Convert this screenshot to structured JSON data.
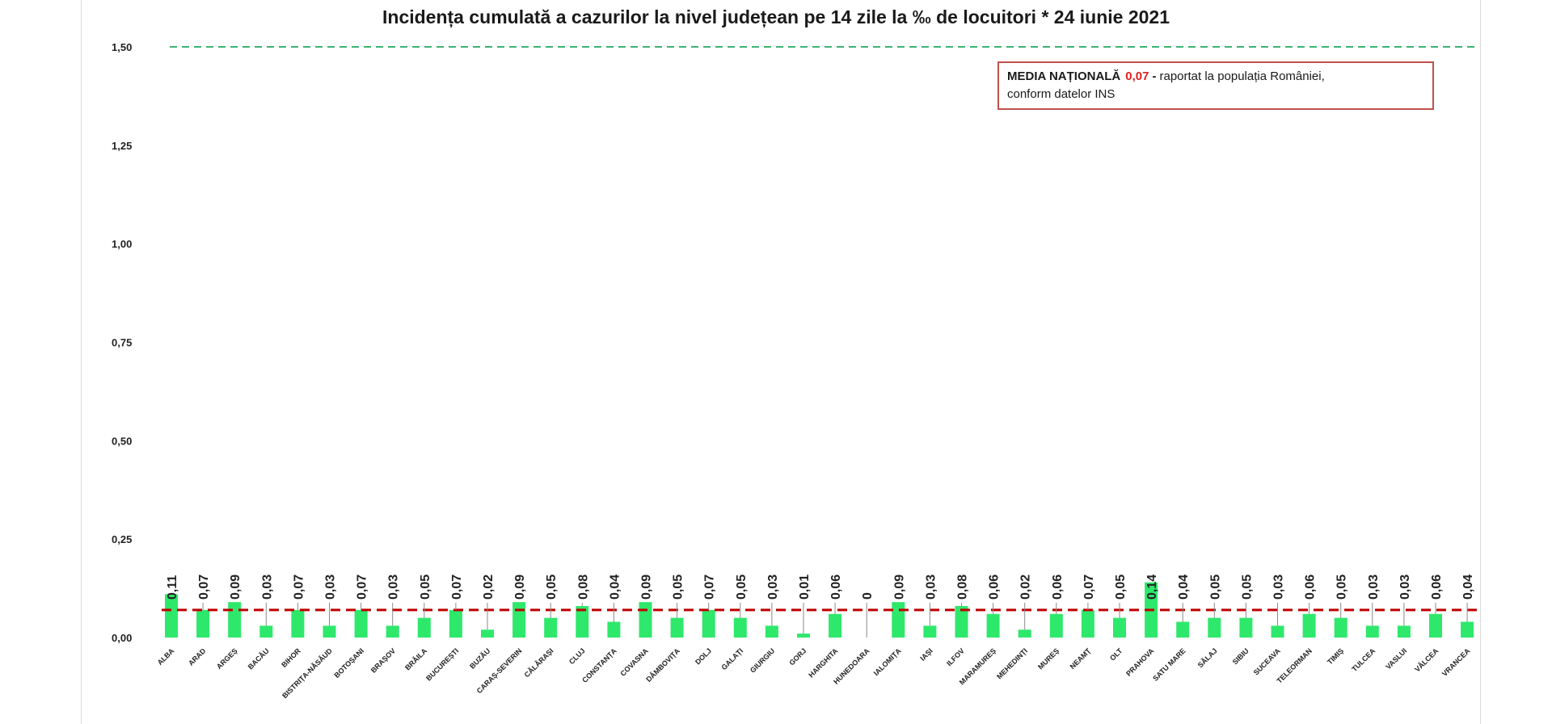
{
  "chart_data": {
    "type": "bar",
    "title": "Incidența cumulată a cazurilor la nivel județean pe 14 zile la ‰ de locuitori *  24 iunie 2021",
    "categories": [
      "ALBA",
      "ARAD",
      "ARGEȘ",
      "BACĂU",
      "BIHOR",
      "BISTRIȚA-NĂSĂUD",
      "BOTOȘANI",
      "BRAȘOV",
      "BRĂILA",
      "BUCUREȘTI",
      "BUZĂU",
      "CARAȘ-SEVERIN",
      "CĂLĂRAȘI",
      "CLUJ",
      "CONSTANȚA",
      "COVASNA",
      "DÂMBOVIȚA",
      "DOLJ",
      "GALAȚI",
      "GIURGIU",
      "GORJ",
      "HARGHITA",
      "HUNEDOARA",
      "IALOMIȚA",
      "IAȘI",
      "ILFOV",
      "MARAMUREȘ",
      "MEHEDINȚI",
      "MUREȘ",
      "NEAMȚ",
      "OLT",
      "PRAHOVA",
      "SATU MARE",
      "SĂLAJ",
      "SIBIU",
      "SUCEAVA",
      "TELEORMAN",
      "TIMIȘ",
      "TULCEA",
      "VASLUI",
      "VÂLCEA",
      "VRANCEA"
    ],
    "values": [
      0.11,
      0.07,
      0.09,
      0.03,
      0.07,
      0.03,
      0.07,
      0.03,
      0.05,
      0.07,
      0.02,
      0.09,
      0.05,
      0.08,
      0.04,
      0.09,
      0.05,
      0.07,
      0.05,
      0.03,
      0.01,
      0.06,
      0,
      0.09,
      0.03,
      0.08,
      0.06,
      0.02,
      0.06,
      0.07,
      0.05,
      0.14,
      0.04,
      0.05,
      0.05,
      0.03,
      0.06,
      0.05,
      0.03,
      0.03,
      0.06,
      0.04
    ],
    "value_labels": [
      "0,11",
      "0,07",
      "0,09",
      "0,03",
      "0,07",
      "0,03",
      "0,07",
      "0,03",
      "0,05",
      "0,07",
      "0,02",
      "0,09",
      "0,05",
      "0,08",
      "0,04",
      "0,09",
      "0,05",
      "0,07",
      "0,05",
      "0,03",
      "0,01",
      "0,06",
      "0",
      "0,09",
      "0,03",
      "0,08",
      "0,06",
      "0,02",
      "0,06",
      "0,07",
      "0,05",
      "0,14",
      "0,04",
      "0,05",
      "0,05",
      "0,03",
      "0,06",
      "0,05",
      "0,03",
      "0,03",
      "0,06",
      "0,04"
    ],
    "yticks": [
      0,
      0.25,
      0.5,
      0.75,
      1.0,
      1.25,
      1.5
    ],
    "ytick_labels": [
      "0,00",
      "0,25",
      "0,50",
      "0,75",
      "1,00",
      "1,25",
      "1,50"
    ],
    "ylim": [
      0,
      1.5
    ],
    "xlabel": "",
    "ylabel": "",
    "reference_lines": [
      {
        "value": 1.5,
        "color": "#3cb371",
        "style": "dashed"
      },
      {
        "value": 0.07,
        "color": "#c00000",
        "style": "dashed"
      }
    ],
    "bar_color": "#2ee86b"
  },
  "legend": {
    "label": "MEDIA NAȚIONALĂ",
    "value": "0,07",
    "dash": "-",
    "text_line1": "raportat la populația României,",
    "text_line2": "conform datelor INS"
  }
}
